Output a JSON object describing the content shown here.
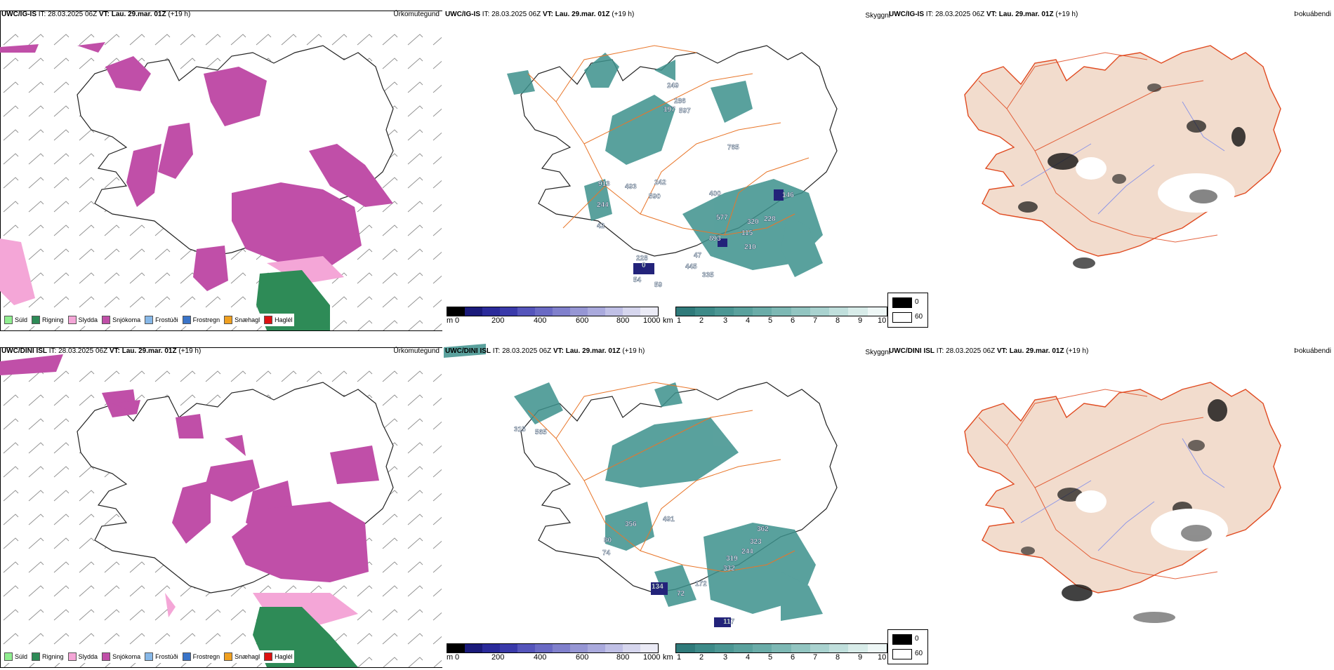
{
  "rows": [
    {
      "model": "UWC/IG-IS",
      "it_label": "IT:",
      "it_value": "28.03.2025 06Z",
      "vt_label": "VT:",
      "vt_value": "Lau. 29.mar. 01Z",
      "lead": "(+19 h)",
      "titles": [
        "Úrkomutegund",
        "Skyggni",
        "Þokuábendi"
      ],
      "elevations": [
        "249",
        "286",
        "197",
        "597",
        "765",
        "913",
        "493",
        "244",
        "242",
        "42",
        "590",
        "400",
        "577",
        "320",
        "228",
        "146",
        "893",
        "115",
        "210",
        "228",
        "47",
        "0",
        "54",
        "59",
        "445",
        "335"
      ]
    },
    {
      "model": "UWC/DINI ISL",
      "it_label": "IT:",
      "it_value": "28.03.2025 06Z",
      "vt_label": "VT:",
      "vt_value": "Lau. 29.mar. 01Z",
      "lead": "(+19 h)",
      "titles": [
        "Úrkomutegund",
        "Skyggni",
        "Þokuábendi"
      ],
      "elevations": [
        "315",
        "565",
        "356",
        "491",
        "80",
        "74",
        "362",
        "323",
        "244",
        "319",
        "332",
        "134",
        "72",
        "172",
        "117"
      ]
    }
  ],
  "precip_legend": [
    {
      "label": "Súld",
      "color": "#90ee90"
    },
    {
      "label": "Rigning",
      "color": "#2e8b57"
    },
    {
      "label": "Slydda",
      "color": "#f4a6d7"
    },
    {
      "label": "Snjókoma",
      "color": "#c04fa8"
    },
    {
      "label": "Frostúði",
      "color": "#87b8e8"
    },
    {
      "label": "Frostregn",
      "color": "#3a74c8"
    },
    {
      "label": "Snæhagl",
      "color": "#f0a020"
    },
    {
      "label": "Haglél",
      "color": "#dd1111"
    }
  ],
  "ceiling_bar": {
    "unit": "m",
    "ticks": [
      "0",
      "200",
      "400",
      "600",
      "800",
      "1000"
    ],
    "colors": [
      "#000000",
      "#1a1a7a",
      "#2a2a9a",
      "#3a3aaa",
      "#5555bb",
      "#6a6ac4",
      "#8080cc",
      "#9696d4",
      "#aaaadd",
      "#c0c0e6",
      "#d6d6ee",
      "#ebebf6"
    ]
  },
  "visibility_bar": {
    "unit": "km",
    "ticks": [
      "1",
      "2",
      "3",
      "4",
      "5",
      "6",
      "7",
      "8",
      "9",
      "10"
    ],
    "colors": [
      "#2f7a7a",
      "#3d8a88",
      "#4b9693",
      "#5aa19d",
      "#6aaca8",
      "#7db8b4",
      "#92c5c1",
      "#a9d2cf",
      "#c0dfdc",
      "#d8ece9",
      "#eef7f6"
    ]
  },
  "fog_legend": [
    {
      "label": "0",
      "color": "#000000"
    },
    {
      "label": "60",
      "color": "#ffffff"
    }
  ],
  "colors": {
    "snow": "#c04fa8",
    "rain": "#2e8b57",
    "sleet": "#f4a6d7",
    "cloud_teal": "#3d918c",
    "roads": "#e8762a",
    "land_tan": "#f2dccd",
    "coast": "#111111"
  }
}
